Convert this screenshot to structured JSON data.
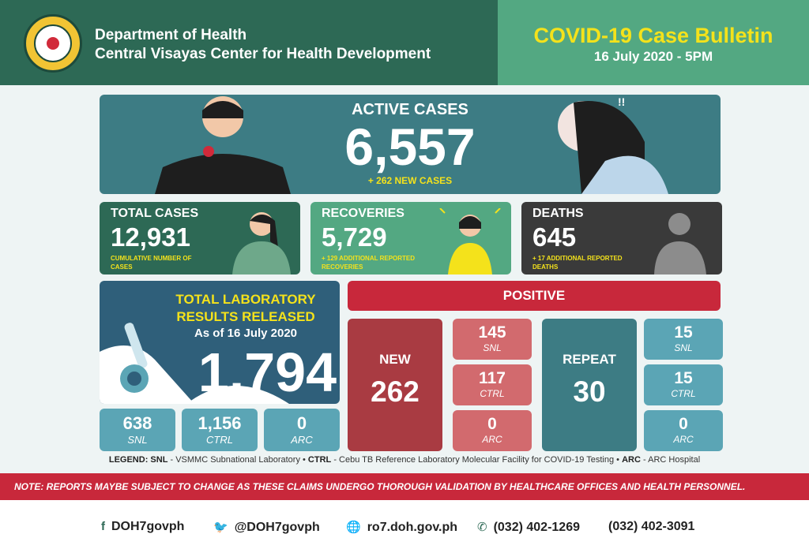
{
  "header": {
    "org_line1": "Department of Health",
    "org_line2": "Central Visayas Center for Health Development",
    "title": "COVID-19 Case Bulletin",
    "date": "16 July 2020 - 5PM",
    "seal_text": "REPUBLIC OF THE PHILIPPINES DEPARTMENT OF HEALTH"
  },
  "active": {
    "label": "ACTIVE CASES",
    "value": "6,557",
    "new_cases": "+ 262 NEW CASES"
  },
  "total_cases": {
    "label": "TOTAL CASES",
    "value": "12,931",
    "sub": "CUMULATIVE NUMBER OF CASES"
  },
  "recoveries": {
    "label": "RECOVERIES",
    "value": "5,729",
    "sub": "+ 129 ADDITIONAL REPORTED RECOVERIES"
  },
  "deaths": {
    "label": "DEATHS",
    "value": "645",
    "sub": "+ 17 ADDITIONAL REPORTED DEATHS"
  },
  "lab": {
    "title1": "TOTAL LABORATORY",
    "title2": "RESULTS RELEASED",
    "as_of": "As of 16 July 2020",
    "value": "1,794",
    "breakdown": [
      {
        "value": "638",
        "label": "SNL"
      },
      {
        "value": "1,156",
        "label": "CTRL"
      },
      {
        "value": "0",
        "label": "ARC"
      }
    ]
  },
  "positive": {
    "label": "POSITIVE",
    "new": {
      "label": "NEW",
      "value": "262",
      "breakdown": [
        {
          "value": "145",
          "label": "SNL"
        },
        {
          "value": "117",
          "label": "CTRL"
        },
        {
          "value": "0",
          "label": "ARC"
        }
      ]
    },
    "repeat": {
      "label": "REPEAT",
      "value": "30",
      "breakdown": [
        {
          "value": "15",
          "label": "SNL"
        },
        {
          "value": "15",
          "label": "CTRL"
        },
        {
          "value": "0",
          "label": "ARC"
        }
      ]
    }
  },
  "legend": {
    "prefix": "LEGEND:",
    "snl_key": "SNL",
    "snl_desc": "- VSMMC Subnational Laboratory",
    "ctrl_key": "CTRL",
    "ctrl_desc": "- Cebu TB Reference Laboratory Molecular Facility for COVID-19 Testing",
    "arc_key": "ARC",
    "arc_desc": "- ARC Hospital"
  },
  "note": "NOTE:  REPORTS MAYBE SUBJECT TO CHANGE AS THESE CLAIMS UNDERGO THOROUGH VALIDATION BY HEALTHCARE OFFICES AND HEALTH PERSONNEL.",
  "footer": {
    "facebook": "DOH7govph",
    "twitter": "@DOH7govph",
    "website": "ro7.doh.gov.ph",
    "phone1": "(032) 402-1269",
    "phone2": "(032) 402-3091"
  },
  "colors": {
    "green_dark": "#2d6955",
    "green_light": "#53a882",
    "yellow": "#f4e21b",
    "red": "#c8283b",
    "teal": "#3d7c84"
  }
}
